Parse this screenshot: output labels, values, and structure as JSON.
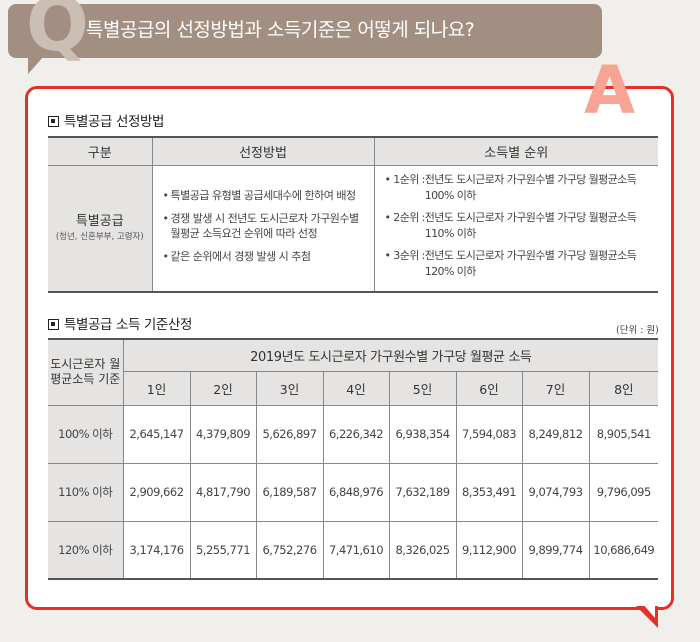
{
  "question": {
    "letter": "Q",
    "text": "특별공급의 선정방법과 소득기준은 어떻게 되나요?"
  },
  "answer": {
    "letter": "A",
    "section1": {
      "title": "특별공급 선정방법",
      "headers": [
        "구분",
        "선정방법",
        "소득별 순위"
      ],
      "category": {
        "main": "특별공급",
        "sub": "(청년, 신혼부부, 고령자)"
      },
      "methods": [
        "특별공급 유형별 공급세대수에 한하여 배정",
        "경쟁 발생 시 전년도 도시근로자 가구원수별 월평균 소득요건 순위에 따라 선정",
        "같은 순위에서 경쟁 발생 시 추첨"
      ],
      "ranks": [
        {
          "label": "1순위 : ",
          "desc": "전년도 도시근로자 가구원수별 가구당 월평균소득 100% 이하"
        },
        {
          "label": "2순위 : ",
          "desc": "전년도 도시근로자 가구원수별 가구당 월평균소득 110% 이하"
        },
        {
          "label": "3순위 : ",
          "desc": "전년도 도시근로자 가구원수별 가구당 월평균소득 120% 이하"
        }
      ]
    },
    "section2": {
      "title": "특별공급 소득 기준산정",
      "unit": "(단위 : 원)",
      "row_header": "도시근로자 월평균소득 기준",
      "span_header": "2019년도 도시근로자 가구원수별 가구당 월평균 소득",
      "columns": [
        "1인",
        "2인",
        "3인",
        "4인",
        "5인",
        "6인",
        "7인",
        "8인"
      ],
      "rows": [
        {
          "label": "100% 이하",
          "values": [
            "2,645,147",
            "4,379,809",
            "5,626,897",
            "6,226,342",
            "6,938,354",
            "7,594,083",
            "8,249,812",
            "8,905,541"
          ]
        },
        {
          "label": "110% 이하",
          "values": [
            "2,909,662",
            "4,817,790",
            "6,189,587",
            "6,848,976",
            "7,632,189",
            "8,353,491",
            "9,074,793",
            "9,796,095"
          ]
        },
        {
          "label": "120% 이하",
          "values": [
            "3,174,176",
            "5,255,771",
            "6,752,276",
            "7,471,610",
            "8,326,025",
            "9,112,900",
            "9,899,774",
            "10,686,649"
          ]
        }
      ]
    }
  }
}
